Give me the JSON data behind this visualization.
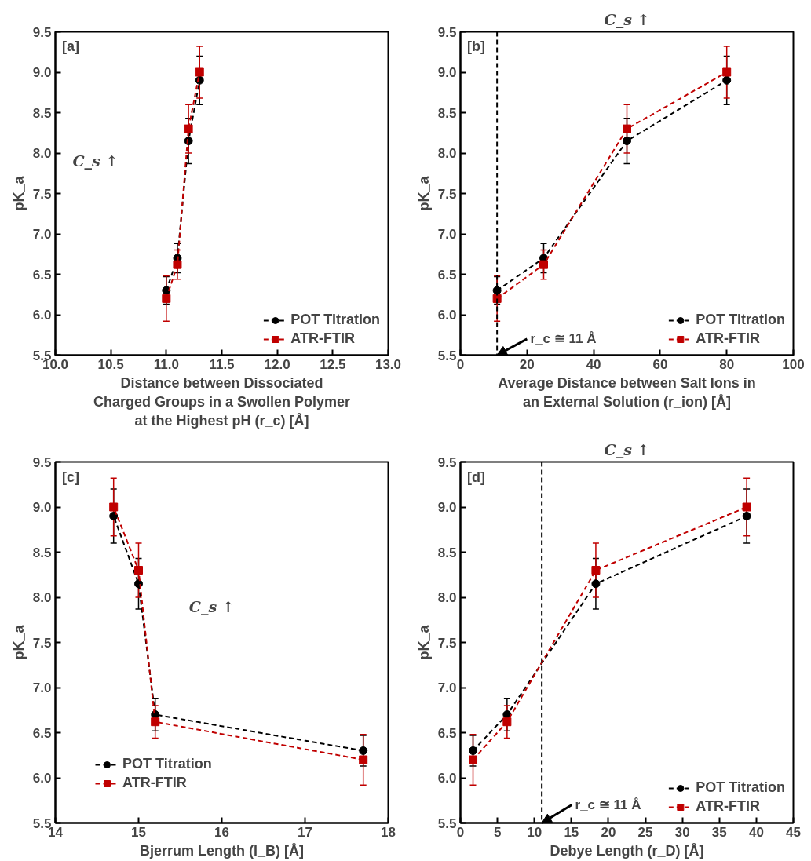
{
  "chart_data": [
    {
      "type": "line",
      "xlabel": "Distance between Dissociated\nCharged Groups in a Swollen Polymer\nat the Highest pH (r_c) [Å]",
      "ylabel": "pK_a",
      "x": [
        11.0,
        11.1,
        11.2,
        11.3
      ],
      "series": [
        {
          "name": "POT Titration",
          "color": "#000000",
          "marker": "circle",
          "values": [
            6.3,
            6.7,
            8.15,
            8.9
          ],
          "errors": [
            0.17,
            0.18,
            0.28,
            0.3
          ]
        },
        {
          "name": "ATR-FTIR",
          "color": "#c00000",
          "marker": "square",
          "values": [
            6.2,
            6.62,
            8.3,
            9.0
          ],
          "errors": [
            0.28,
            0.18,
            0.3,
            0.32
          ]
        }
      ],
      "xlim": [
        10,
        13
      ],
      "xticks": [
        {
          "value": 10,
          "label": "10.0"
        },
        10.5,
        {
          "value": 11,
          "label": "11.0"
        },
        11.5,
        {
          "value": 12,
          "label": "12.0"
        },
        12.5,
        {
          "value": 13,
          "label": "13.0"
        }
      ],
      "ylim": [
        5.5,
        9.5
      ],
      "yticks": [
        5.5,
        {
          "value": 6,
          "label": "6.0"
        },
        6.5,
        {
          "value": 7,
          "label": "7.0"
        },
        7.5,
        {
          "value": 8,
          "label": "8.0"
        },
        8.5,
        {
          "value": 9,
          "label": "9.0"
        },
        9.5
      ],
      "annotations": [
        "[a]",
        "C_s ↑"
      ],
      "line_style": "dashed",
      "grid": false,
      "legend": "bottom right"
    },
    {
      "type": "line",
      "xlabel": "Average Distance between Salt Ions in\nan External Solution (r_ion) [Å]",
      "ylabel": "pK_a",
      "x": [
        11,
        25,
        50,
        80
      ],
      "series": [
        {
          "name": "POT Titration",
          "color": "#000000",
          "marker": "circle",
          "values": [
            6.3,
            6.7,
            8.15,
            8.9
          ],
          "errors": [
            0.17,
            0.18,
            0.28,
            0.3
          ]
        },
        {
          "name": "ATR-FTIR",
          "color": "#c00000",
          "marker": "square",
          "values": [
            6.2,
            6.62,
            8.3,
            9.0
          ],
          "errors": [
            0.28,
            0.18,
            0.3,
            0.32
          ]
        }
      ],
      "xlim": [
        0,
        100
      ],
      "xticks": [
        0,
        20,
        40,
        60,
        80,
        100
      ],
      "ylim": [
        5.5,
        9.5
      ],
      "yticks": [
        5.5,
        {
          "value": 6,
          "label": "6.0"
        },
        6.5,
        {
          "value": 7,
          "label": "7.0"
        },
        7.5,
        {
          "value": 8,
          "label": "8.0"
        },
        8.5,
        {
          "value": 9,
          "label": "9.0"
        },
        9.5
      ],
      "ref_lines": [
        {
          "axis": "x",
          "value": 11,
          "label": "r_c ≅ 11 Å",
          "color": "#000000",
          "line_style": "dashed"
        }
      ],
      "annotations": [
        "[b]",
        "C_s ↑"
      ],
      "line_style": "dashed",
      "grid": false,
      "legend": "bottom right"
    },
    {
      "type": "line",
      "xlabel": "Bjerrum Length (l_B) [Å]",
      "ylabel": "pK_a",
      "x": [
        17.7,
        15.2,
        15.0,
        14.7
      ],
      "series": [
        {
          "name": "POT Titration",
          "color": "#000000",
          "marker": "circle",
          "values": [
            6.3,
            6.7,
            8.15,
            8.9
          ],
          "errors": [
            0.17,
            0.18,
            0.28,
            0.3
          ]
        },
        {
          "name": "ATR-FTIR",
          "color": "#c00000",
          "marker": "square",
          "values": [
            6.2,
            6.62,
            8.3,
            9.0
          ],
          "errors": [
            0.28,
            0.18,
            0.3,
            0.32
          ]
        }
      ],
      "xlim": [
        14,
        18
      ],
      "xticks": [
        14,
        15,
        16,
        17,
        18
      ],
      "ylim": [
        5.5,
        9.5
      ],
      "yticks": [
        5.5,
        {
          "value": 6,
          "label": "6.0"
        },
        6.5,
        {
          "value": 7,
          "label": "7.0"
        },
        7.5,
        {
          "value": 8,
          "label": "8.0"
        },
        8.5,
        {
          "value": 9,
          "label": "9.0"
        },
        9.5
      ],
      "annotations": [
        "[c]",
        "C_s ↑"
      ],
      "line_style": "dashed",
      "grid": false,
      "legend": "bottom"
    },
    {
      "type": "line",
      "xlabel": "Debye Length (r_D) [Å]",
      "ylabel": "pK_a",
      "x": [
        1.7,
        6.3,
        18.3,
        38.7
      ],
      "series": [
        {
          "name": "POT Titration",
          "color": "#000000",
          "marker": "circle",
          "values": [
            6.3,
            6.7,
            8.15,
            8.9
          ],
          "errors": [
            0.17,
            0.18,
            0.28,
            0.3
          ]
        },
        {
          "name": "ATR-FTIR",
          "color": "#c00000",
          "marker": "square",
          "values": [
            6.2,
            6.62,
            8.3,
            9.0
          ],
          "errors": [
            0.28,
            0.18,
            0.3,
            0.32
          ]
        }
      ],
      "xlim": [
        0,
        45
      ],
      "xticks": [
        0,
        5,
        10,
        15,
        20,
        25,
        30,
        35,
        40,
        45
      ],
      "ylim": [
        5.5,
        9.5
      ],
      "yticks": [
        5.5,
        {
          "value": 6,
          "label": "6.0"
        },
        6.5,
        {
          "value": 7,
          "label": "7.0"
        },
        7.5,
        {
          "value": 8,
          "label": "8.0"
        },
        8.5,
        {
          "value": 9,
          "label": "9.0"
        },
        9.5
      ],
      "ref_lines": [
        {
          "axis": "x",
          "value": 11,
          "label": "r_c ≅ 11 Å",
          "color": "#000000",
          "line_style": "dashed"
        }
      ],
      "annotations": [
        "[d]",
        "C_s ↑"
      ],
      "line_style": "dashed",
      "grid": false,
      "legend": "bottom right"
    }
  ]
}
